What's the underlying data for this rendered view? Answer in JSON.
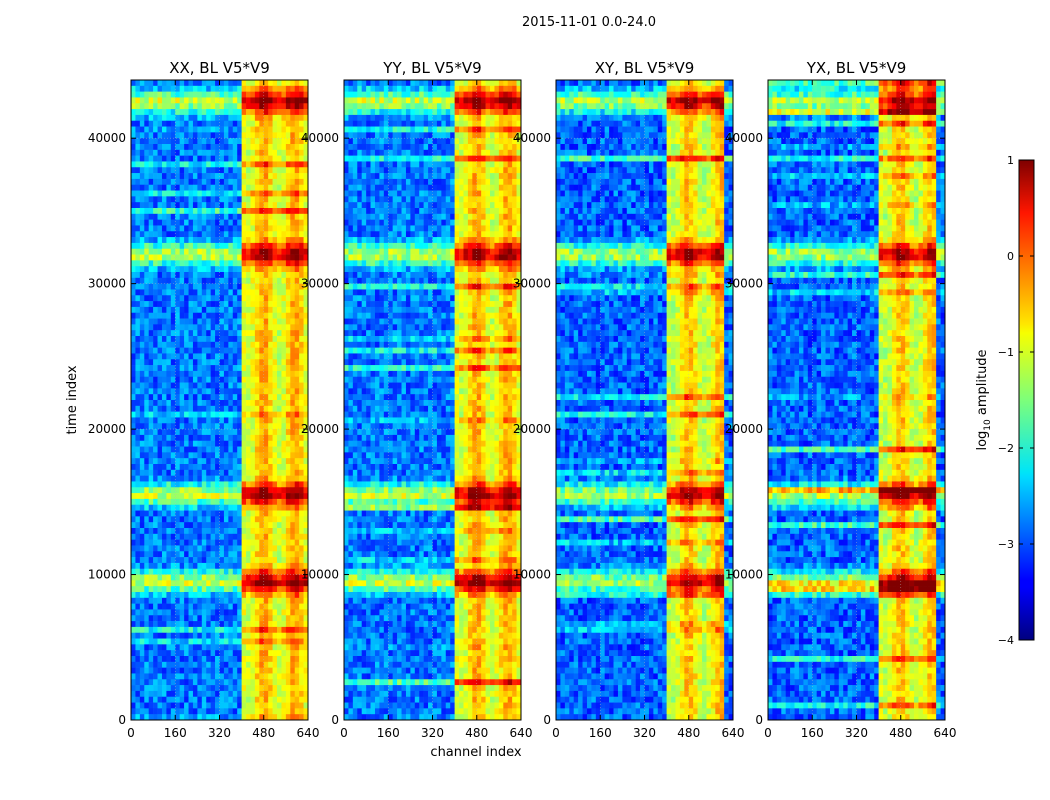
{
  "figure": {
    "suptitle": "2015-11-01 0.0-24.0"
  },
  "chart_data": [
    {
      "type": "heatmap",
      "title": "XX, BL V5*V9",
      "xlabel": "channel index",
      "ylabel": "time index",
      "xlim": [
        0,
        640
      ],
      "ylim": [
        0,
        44000
      ],
      "xticks": [
        0,
        160,
        320,
        480,
        640
      ],
      "yticks": [
        0,
        10000,
        20000,
        30000,
        40000
      ],
      "bright_channel_range": [
        400,
        640
      ],
      "bright_bands_time": [
        9500,
        15500,
        32000,
        42500
      ],
      "baseline_log_amplitude": -2.8,
      "bright_log_amplitude": -0.2
    },
    {
      "type": "heatmap",
      "title": "YY, BL V5*V9",
      "xlabel": "channel index",
      "xlim": [
        0,
        640
      ],
      "ylim": [
        0,
        44000
      ],
      "xticks": [
        0,
        160,
        320,
        480,
        640
      ],
      "yticks": [
        0,
        10000,
        20000,
        30000,
        40000
      ],
      "bright_channel_range": [
        400,
        640
      ],
      "bright_bands_time": [
        9500,
        15500,
        32000,
        42500
      ],
      "baseline_log_amplitude": -2.8,
      "bright_log_amplitude": -0.2
    },
    {
      "type": "heatmap",
      "title": "XY, BL V5*V9",
      "xlabel": "channel index",
      "xlim": [
        0,
        640
      ],
      "ylim": [
        0,
        44000
      ],
      "xticks": [
        0,
        160,
        320,
        480,
        640
      ],
      "yticks": [
        0,
        10000,
        20000,
        30000,
        40000
      ],
      "bright_channel_range": [
        400,
        600
      ],
      "bright_bands_time": [
        9500,
        15500,
        32000,
        42500
      ],
      "baseline_log_amplitude": -2.9,
      "bright_log_amplitude": -0.3
    },
    {
      "type": "heatmap",
      "title": "YX, BL V5*V9",
      "xlabel": "channel index",
      "xlim": [
        0,
        640
      ],
      "ylim": [
        0,
        44000
      ],
      "xticks": [
        0,
        160,
        320,
        480,
        640
      ],
      "yticks": [
        0,
        10000,
        20000,
        30000,
        40000
      ],
      "bright_channel_range": [
        400,
        600
      ],
      "bright_bands_time": [
        9500,
        15500,
        32000,
        42500
      ],
      "baseline_log_amplitude": -2.9,
      "bright_log_amplitude": -0.3
    }
  ],
  "colorbar": {
    "label": "log10 amplitude",
    "label_prefix": "log",
    "label_sub": "10",
    "label_suffix": " amplitude",
    "range": [
      -4,
      1
    ],
    "ticks": [
      1,
      0,
      -1,
      -2,
      -3,
      -4
    ],
    "tick_labels": [
      "1",
      "0",
      "−1",
      "−2",
      "−3",
      "−4"
    ],
    "colormap": "jet"
  },
  "x_axis_label": "channel index",
  "y_axis_label": "time index"
}
